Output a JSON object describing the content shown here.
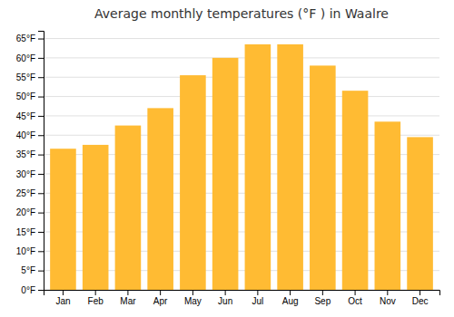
{
  "chart_data": {
    "type": "bar",
    "title": "Average monthly temperatures (°F ) in Waalre",
    "categories": [
      "Jan",
      "Feb",
      "Mar",
      "Apr",
      "May",
      "Jun",
      "Jul",
      "Aug",
      "Sep",
      "Oct",
      "Nov",
      "Dec"
    ],
    "values": [
      36.5,
      37.5,
      42.5,
      47.0,
      55.5,
      60.0,
      63.5,
      63.5,
      58.0,
      51.5,
      43.5,
      39.5
    ],
    "color": "#FFBB33",
    "ylim": [
      0,
      67
    ],
    "yticks": [
      {
        "value": 0,
        "label": "0°F"
      },
      {
        "value": 5,
        "label": "5°F"
      },
      {
        "value": 10,
        "label": "10°F"
      },
      {
        "value": 15,
        "label": "15°F"
      },
      {
        "value": 20,
        "label": "20°F"
      },
      {
        "value": 25,
        "label": "25°F"
      },
      {
        "value": 30,
        "label": "30°F"
      },
      {
        "value": 35,
        "label": "35°F"
      },
      {
        "value": 40,
        "label": "40°F"
      },
      {
        "value": 45,
        "label": "45°F"
      },
      {
        "value": 50,
        "label": "50°F"
      },
      {
        "value": 55,
        "label": "55°F"
      },
      {
        "value": 60,
        "label": "60°F"
      },
      {
        "value": 65,
        "label": "65°F"
      }
    ],
    "grid": true
  }
}
